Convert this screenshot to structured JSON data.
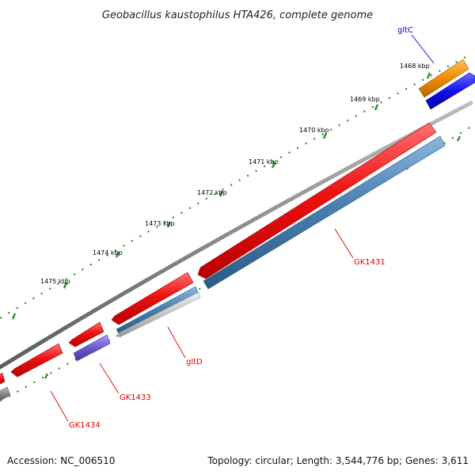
{
  "title": "Geobacillus kaustophilus HTA426, complete genome",
  "footer": {
    "accession": "Accession: NC_006510",
    "topology": "Topology: circular; Length: 3,544,776 bp; Genes: 3,611"
  },
  "ticks": [
    "1468 kbp",
    "1469 kbp",
    "1470 kbp",
    "1471 kbp",
    "1472 kbp",
    "1473 kbp",
    "1474 kbp",
    "1475 kbp"
  ],
  "genes": [
    {
      "name": "gltC",
      "color": "#0000cc"
    },
    {
      "name": "GK1431",
      "color": "#dd0000"
    },
    {
      "name": "gltD",
      "color": "#dd0000"
    },
    {
      "name": "GK1433",
      "color": "#dd0000"
    },
    {
      "name": "GK1434",
      "color": "#dd0000"
    }
  ],
  "colors": {
    "forward_cds": "#ee1111",
    "reverse_cds": "#4a7fb0",
    "gltC_cds": "#f08c00",
    "gltC_reverse": "#1111ee",
    "GK1433_reverse": "#6a5acd",
    "backbone": "#808080",
    "ticks": "#2e8b2e"
  }
}
